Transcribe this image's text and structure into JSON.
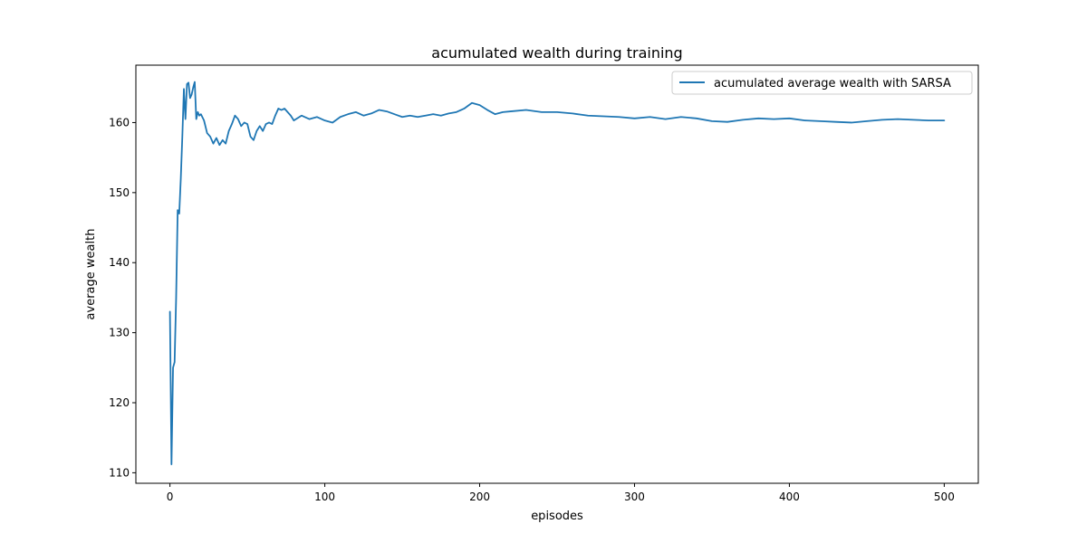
{
  "chart_data": {
    "type": "line",
    "title": "acumulated wealth during training",
    "xlabel": "episodes",
    "ylabel": "average wealth",
    "xlim": [
      -22,
      522
    ],
    "ylim": [
      108.5,
      168.2
    ],
    "xticks": [
      0,
      100,
      200,
      300,
      400,
      500
    ],
    "yticks": [
      110,
      120,
      130,
      140,
      150,
      160
    ],
    "grid": false,
    "legend_position": "top-right",
    "series": [
      {
        "name": "acumulated average wealth with SARSA",
        "color": "#1f77b4",
        "x": [
          0,
          1,
          2,
          3,
          4,
          5,
          6,
          7,
          8,
          9,
          10,
          11,
          12,
          13,
          14,
          15,
          16,
          17,
          18,
          19,
          20,
          22,
          24,
          26,
          28,
          30,
          32,
          34,
          36,
          38,
          40,
          42,
          44,
          46,
          48,
          50,
          52,
          54,
          56,
          58,
          60,
          62,
          64,
          66,
          68,
          70,
          72,
          74,
          76,
          78,
          80,
          85,
          90,
          95,
          100,
          105,
          110,
          115,
          120,
          125,
          130,
          135,
          140,
          145,
          150,
          155,
          160,
          165,
          170,
          175,
          180,
          185,
          190,
          195,
          200,
          205,
          210,
          215,
          220,
          230,
          240,
          250,
          260,
          270,
          280,
          290,
          300,
          310,
          320,
          330,
          340,
          350,
          360,
          370,
          380,
          390,
          400,
          410,
          420,
          430,
          440,
          450,
          460,
          470,
          480,
          490,
          500
        ],
        "y": [
          133.0,
          111.2,
          125.0,
          125.8,
          135.0,
          147.5,
          147.0,
          152.0,
          158.0,
          164.8,
          160.5,
          165.5,
          165.7,
          163.5,
          164.0,
          165.0,
          165.8,
          160.5,
          161.5,
          161.0,
          161.2,
          160.3,
          158.5,
          158.0,
          157.0,
          157.8,
          156.8,
          157.5,
          157.0,
          158.8,
          159.8,
          161.0,
          160.5,
          159.5,
          160.0,
          159.8,
          158.0,
          157.5,
          158.8,
          159.5,
          158.8,
          159.8,
          160.0,
          159.8,
          161.0,
          162.0,
          161.8,
          162.0,
          161.5,
          161.0,
          160.3,
          161.0,
          160.5,
          160.8,
          160.3,
          160.0,
          160.8,
          161.2,
          161.5,
          161.0,
          161.3,
          161.8,
          161.6,
          161.2,
          160.8,
          161.0,
          160.8,
          161.0,
          161.2,
          161.0,
          161.3,
          161.5,
          162.0,
          162.8,
          162.5,
          161.8,
          161.2,
          161.5,
          161.6,
          161.8,
          161.5,
          161.5,
          161.3,
          161.0,
          160.9,
          160.8,
          160.6,
          160.8,
          160.5,
          160.8,
          160.6,
          160.2,
          160.1,
          160.4,
          160.6,
          160.5,
          160.6,
          160.3,
          160.2,
          160.1,
          160.0,
          160.2,
          160.4,
          160.5,
          160.4,
          160.3,
          160.3
        ]
      }
    ]
  }
}
